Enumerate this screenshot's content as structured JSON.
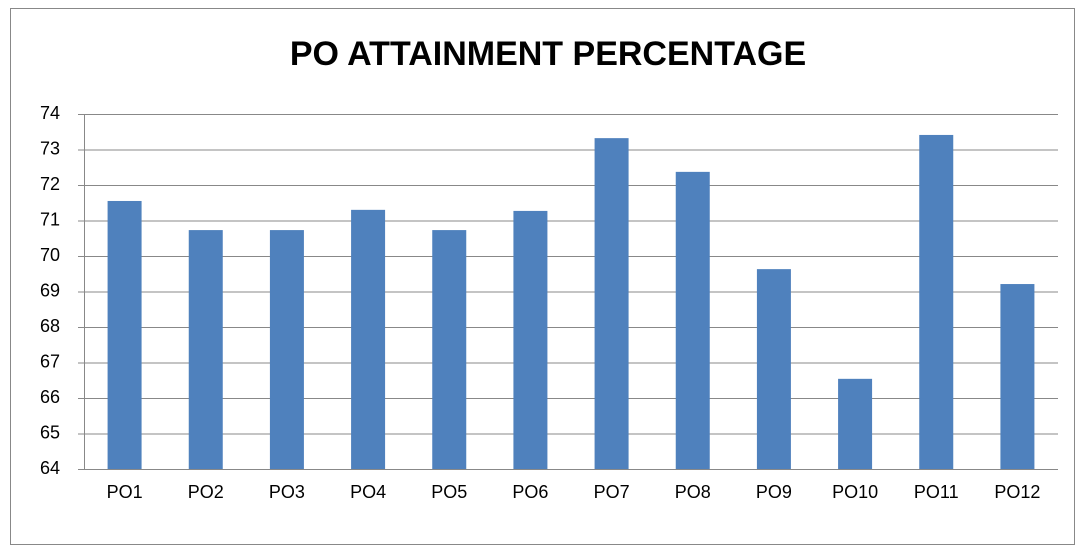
{
  "chart_data": {
    "type": "bar",
    "title": "PO ATTAINMENT PERCENTAGE",
    "categories": [
      "PO1",
      "PO2",
      "PO3",
      "PO4",
      "PO5",
      "PO6",
      "PO7",
      "PO8",
      "PO9",
      "PO10",
      "PO11",
      "PO12"
    ],
    "values": [
      71.55,
      70.73,
      70.73,
      71.3,
      70.73,
      71.27,
      73.32,
      72.37,
      69.63,
      66.54,
      73.41,
      69.21
    ],
    "color": "#4f81bd",
    "ylim": [
      64,
      74
    ],
    "yticks": [
      64,
      65,
      66,
      67,
      68,
      69,
      70,
      71,
      72,
      73,
      74
    ],
    "grid": true
  }
}
